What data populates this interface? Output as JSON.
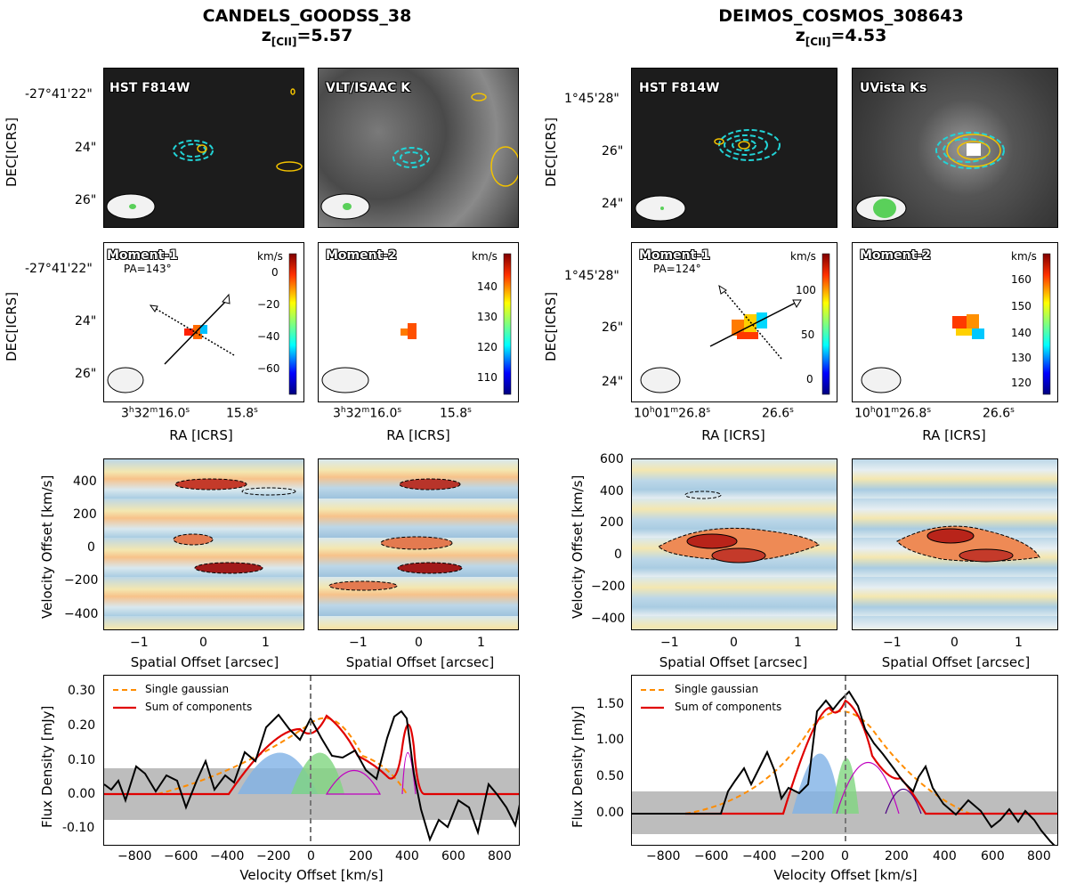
{
  "left": {
    "title": "CANDELS_GOODSS_38",
    "redshift_prefix": "z",
    "redshift_sub": "[CII]",
    "redshift_value": "=5.57",
    "images": [
      {
        "label": "HST F814W"
      },
      {
        "label": "VLT/ISAAC K"
      }
    ],
    "dec_ticks_top": [
      "-27°41'22\"",
      "24\"",
      "26\""
    ],
    "dec_ticks_mid": [
      "-27°41'22\"",
      "24\"",
      "26\""
    ],
    "moment1": {
      "label": "Moment-1",
      "pa": "PA=143°",
      "cbar_unit": "km/s",
      "cbar_ticks": [
        "0",
        "−20",
        "−40",
        "−60"
      ]
    },
    "moment2": {
      "label": "Moment-2",
      "cbar_unit": "km/s",
      "cbar_ticks": [
        "140",
        "130",
        "120",
        "110"
      ]
    },
    "ra_ticks_a": "3",
    "ra_ticks_b": "15.8",
    "pv_yticks": [
      "400",
      "200",
      "0",
      "−200",
      "−400"
    ],
    "pv_xticks": [
      "−1",
      "0",
      "1"
    ],
    "spec_yticks": [
      "0.30",
      "0.20",
      "0.10",
      "0.00",
      "-0.10"
    ]
  },
  "right": {
    "title": "DEIMOS_COSMOS_308643",
    "redshift_prefix": "z",
    "redshift_sub": "[CII]",
    "redshift_value": "=4.53",
    "images": [
      {
        "label": "HST F814W"
      },
      {
        "label": "UVista Ks"
      }
    ],
    "dec_ticks_top": [
      "1°45'28\"",
      "26\"",
      "24\""
    ],
    "dec_ticks_mid": [
      "1°45'28\"",
      "26\"",
      "24\""
    ],
    "moment1": {
      "label": "Moment-1",
      "pa": "PA=124°",
      "cbar_unit": "km/s",
      "cbar_ticks": [
        "100",
        "50",
        "0"
      ]
    },
    "moment2": {
      "label": "Moment-2",
      "cbar_unit": "km/s",
      "cbar_ticks": [
        "160",
        "150",
        "140",
        "130",
        "120"
      ]
    },
    "ra_ticks_a": "10",
    "ra_ticks_b": "26.6",
    "pv_yticks": [
      "600",
      "400",
      "200",
      "0",
      "−200",
      "−400"
    ],
    "pv_xticks": [
      "−1",
      "0",
      "1"
    ],
    "spec_yticks": [
      "1.50",
      "1.00",
      "0.50",
      "0.00"
    ]
  },
  "labels": {
    "dec": "DEC[ICRS]",
    "ra": "RA [ICRS]",
    "vel_offset": "Velocity Offset [km/s]",
    "spatial_offset": "Spatial Offset [arcsec]",
    "flux_density": "Flux Density [mJy]",
    "legend_single": "Single gaussian",
    "legend_sum": "Sum of components"
  },
  "ra_left": {
    "h": "3",
    "hs": "h",
    "m": "32",
    "ms": "m",
    "s": "16.0",
    "ss": "s",
    "b": "15.8",
    "bs": "s"
  },
  "ra_right": {
    "h": "10",
    "hs": "h",
    "m": "01",
    "ms": "m",
    "s": "26.8",
    "ss": "s",
    "b": "26.6",
    "bs": "s"
  },
  "spec_xticks": [
    "−800",
    "−600",
    "−400",
    "−200",
    "0",
    "200",
    "400",
    "600",
    "800"
  ],
  "colors": {
    "gaussian_dashed": "#ff8c00",
    "sum": "#e00000",
    "comp_blue": "#7fb2e6",
    "comp_green": "#7fd67f",
    "noise_band": "#bdbdbd",
    "contour_cyan": "#22d3d6",
    "contour_yellow": "#f2c200"
  }
}
